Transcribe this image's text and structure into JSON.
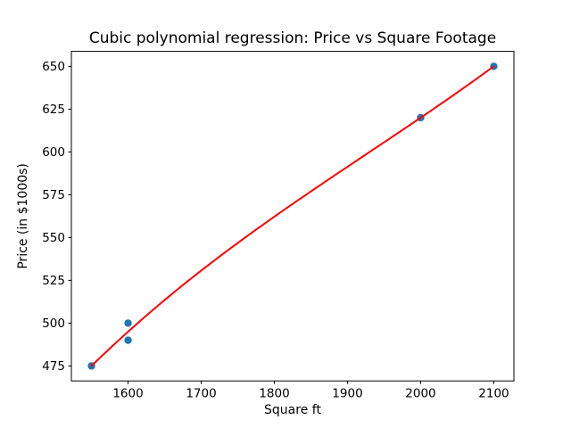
{
  "chart_data": {
    "type": "scatter",
    "title": "Cubic polynomial regression: Price vs Square Footage",
    "xlabel": "Square ft",
    "ylabel": "Price (in $1000s)",
    "points": {
      "x": [
        1550,
        1600,
        1600,
        2000,
        2100
      ],
      "y": [
        475,
        500,
        490,
        620,
        650
      ]
    },
    "fit_curve": {
      "type": "cubic-polynomial",
      "x_center": 1800,
      "x_scale": 100,
      "coefficients": [
        562.1989,
        30.01474,
        -1.17482,
        0.30855
      ],
      "x_range": [
        1550,
        2100
      ]
    },
    "xlim": [
      1522.5,
      2127.5
    ],
    "ylim": [
      466.25,
      658.75
    ],
    "xticks": [
      1600,
      1700,
      1800,
      1900,
      2000,
      2100
    ],
    "yticks": [
      475,
      500,
      525,
      550,
      575,
      600,
      625,
      650
    ],
    "marker_color": "#1f77b4",
    "line_color": "#ff0000",
    "axis_color": "#000000",
    "background_color": "#ffffff",
    "grid": false,
    "legend": "none"
  }
}
